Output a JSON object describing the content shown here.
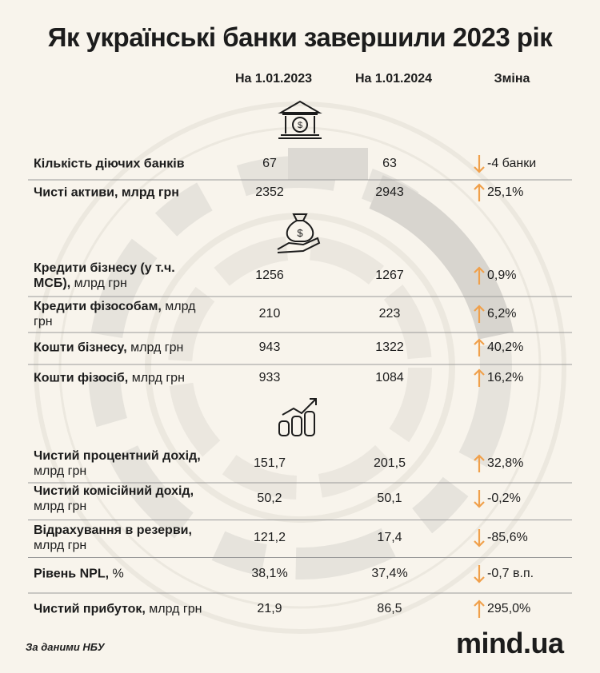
{
  "title": "Як українські банки завершили 2023 рік",
  "columns": [
    "На 1.01.2023",
    "На 1.01.2024",
    "Зміна"
  ],
  "arrow_color": "#f0a04b",
  "sections": [
    {
      "rows": [
        {
          "name": "Кількість діючих банків",
          "v2023": "67",
          "v2024": "63",
          "direction": "down",
          "change": "-4 банки"
        },
        {
          "name": "Чисті активи, млрд грн",
          "v2023": "2352",
          "v2024": "2943",
          "direction": "up",
          "change": "25,1%"
        }
      ]
    },
    {
      "rows": [
        {
          "name": "Кредити бізнесу (у т.ч. МСБ),",
          "unit": "млрд грн",
          "v2023": "1256",
          "v2024": "1267",
          "direction": "up",
          "change": "0,9%"
        },
        {
          "name": "Кредити фізособам,",
          "unit": "млрд грн",
          "v2023": "210",
          "v2024": "223",
          "direction": "up",
          "change": "6,2%"
        },
        {
          "name": "Кошти бізнесу,",
          "unit": "млрд грн",
          "v2023": "943",
          "v2024": "1322",
          "direction": "up",
          "change": "40,2%"
        },
        {
          "name": "Кошти фізосіб,",
          "unit": "млрд грн",
          "v2023": "933",
          "v2024": "1084",
          "direction": "up",
          "change": "16,2%"
        }
      ]
    },
    {
      "rows": [
        {
          "name": "Чистий процентний дохід,",
          "unit": "млрд грн",
          "v2023": "151,7",
          "v2024": "201,5",
          "direction": "up",
          "change": "32,8%"
        },
        {
          "name": "Чистий комісійний дохід,",
          "unit": "млрд грн",
          "v2023": "50,2",
          "v2024": "50,1",
          "direction": "down",
          "change": "-0,2%"
        },
        {
          "name": "Відрахування в резерви,",
          "unit": "млрд грн",
          "v2023": "121,2",
          "v2024": "17,4",
          "direction": "down",
          "change": "-85,6%"
        },
        {
          "name": "Рівень NPL,",
          "unit": "%",
          "v2023": "38,1%",
          "v2024": "37,4%",
          "direction": "down",
          "change": "-0,7 в.п."
        },
        {
          "name": "Чистий прибуток,",
          "unit": "млрд грн",
          "v2023": "21,9",
          "v2024": "86,5",
          "direction": "up",
          "change": "295,0%"
        }
      ]
    }
  ],
  "source": "За даними НБУ",
  "brand": "mind.ua"
}
